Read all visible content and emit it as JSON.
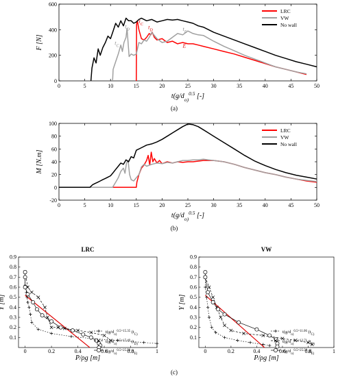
{
  "figure": {
    "panel_a_caption": "(a)",
    "panel_b_caption": "(b)",
    "panel_c_caption": "(c)"
  },
  "chart_data": [
    {
      "type": "line",
      "id": "a",
      "ylabel": "F [N]",
      "xlabel": "t(g/d_o)^0.5 [-]",
      "xlim": [
        0,
        50
      ],
      "ylim": [
        0,
        600
      ],
      "xticks": [
        0,
        5,
        10,
        15,
        20,
        25,
        30,
        35,
        40,
        45,
        50
      ],
      "yticks": [
        0,
        200,
        400,
        600
      ],
      "legend_position": "top-right",
      "annotations": [
        {
          "text": "t_C",
          "x": 10.8,
          "y": 280,
          "color": "#888888"
        },
        {
          "text": "t_D",
          "x": 12.8,
          "y": 410,
          "color": "#888888"
        },
        {
          "text": "t_C",
          "x": 15.5,
          "y": 450,
          "color": "#e00000"
        },
        {
          "text": "t_D",
          "x": 17.3,
          "y": 405,
          "color": "#e00000"
        },
        {
          "text": "t_E",
          "x": 24.0,
          "y": 390,
          "color": "#888888"
        },
        {
          "text": "E",
          "x": 24.0,
          "y": 260,
          "color": "#e00000"
        }
      ],
      "series": [
        {
          "name": "LRC",
          "color": "#ff0000",
          "x": [
            15,
            15.05,
            15.2,
            15.5,
            16,
            16.5,
            17,
            17.5,
            17.8,
            18.1,
            18.5,
            19,
            20,
            21,
            22,
            23,
            24,
            25,
            26,
            27,
            28,
            30,
            32,
            34,
            36,
            38,
            40,
            42,
            44,
            46,
            48
          ],
          "y": [
            0,
            440,
            470,
            400,
            330,
            320,
            340,
            370,
            360,
            380,
            340,
            320,
            330,
            300,
            310,
            290,
            300,
            290,
            290,
            280,
            270,
            250,
            230,
            210,
            185,
            160,
            135,
            110,
            90,
            70,
            50
          ]
        },
        {
          "name": "VW",
          "color": "#a0a0a0",
          "x": [
            10.4,
            10.5,
            11,
            11.5,
            12,
            12.3,
            12.6,
            13,
            13.2,
            13.4,
            13.6,
            14,
            14.5,
            15,
            15.5,
            16,
            16.5,
            17,
            17.5,
            18,
            19,
            20,
            21,
            22,
            23,
            24,
            25,
            26,
            27,
            28,
            30,
            32,
            34,
            36,
            38,
            40,
            42,
            44,
            46,
            48
          ],
          "y": [
            0,
            90,
            150,
            210,
            280,
            230,
            300,
            340,
            410,
            300,
            190,
            210,
            200,
            210,
            300,
            290,
            320,
            310,
            340,
            380,
            330,
            300,
            310,
            340,
            370,
            360,
            390,
            370,
            360,
            355,
            310,
            270,
            235,
            200,
            170,
            140,
            110,
            90,
            70,
            55
          ]
        },
        {
          "name": "No wall",
          "color": "#000000",
          "x": [
            6.2,
            6.4,
            6.8,
            7.2,
            7.6,
            8,
            8.5,
            9,
            9.5,
            10,
            10.5,
            11,
            11.5,
            12,
            12.5,
            13,
            13.5,
            14,
            14.5,
            15,
            15.5,
            16,
            16.5,
            17,
            18,
            19,
            20,
            21,
            22,
            23,
            24,
            25,
            26,
            27,
            28,
            29,
            30,
            32,
            34,
            36,
            38,
            40,
            42,
            44,
            46,
            48,
            50
          ],
          "y": [
            0,
            100,
            180,
            140,
            250,
            200,
            260,
            300,
            350,
            330,
            390,
            450,
            420,
            470,
            430,
            490,
            470,
            470,
            450,
            460,
            480,
            490,
            480,
            470,
            480,
            460,
            470,
            480,
            475,
            480,
            470,
            460,
            450,
            430,
            420,
            400,
            380,
            350,
            320,
            290,
            260,
            230,
            200,
            175,
            150,
            130,
            110
          ]
        }
      ]
    },
    {
      "type": "line",
      "id": "b",
      "ylabel": "M [N.m]",
      "xlabel": "t(g/d_o)^0.5 [-]",
      "xlim": [
        0,
        50
      ],
      "ylim": [
        -20,
        100
      ],
      "xticks": [
        0,
        5,
        10,
        15,
        20,
        25,
        30,
        35,
        40,
        45,
        50
      ],
      "yticks": [
        -20,
        0,
        20,
        40,
        60,
        80,
        100
      ],
      "legend_position": "top-right",
      "series": [
        {
          "name": "LRC",
          "color": "#ff0000",
          "x": [
            0,
            15,
            15.1,
            15.5,
            16,
            16.5,
            17,
            17.3,
            17.6,
            17.9,
            18.2,
            18.5,
            19,
            19.5,
            20,
            21,
            22,
            23,
            24,
            25,
            26,
            28,
            30,
            32,
            34,
            36,
            38,
            40,
            42,
            44,
            46,
            48,
            50
          ],
          "y": [
            0,
            0,
            8,
            20,
            30,
            35,
            42,
            50,
            35,
            55,
            40,
            45,
            38,
            42,
            37,
            40,
            38,
            40,
            39,
            40,
            40,
            42,
            42,
            40,
            36,
            31,
            27,
            23,
            20,
            16,
            13,
            10,
            8
          ]
        },
        {
          "name": "VW",
          "color": "#a0a0a0",
          "x": [
            0,
            10.4,
            11,
            11.5,
            12,
            12.5,
            12.8,
            13.1,
            13.4,
            13.7,
            14,
            14.5,
            15,
            15.5,
            16,
            16.5,
            17,
            18,
            19,
            20,
            21,
            22,
            23,
            24,
            25,
            26,
            27,
            28,
            29,
            30,
            32,
            34,
            36,
            38,
            40,
            42,
            44,
            46,
            48,
            50
          ],
          "y": [
            0,
            0,
            8,
            15,
            25,
            30,
            22,
            38,
            42,
            20,
            12,
            10,
            15,
            20,
            32,
            36,
            33,
            36,
            38,
            37,
            39,
            38,
            40,
            42,
            42,
            43,
            43,
            44,
            43,
            42,
            40,
            36,
            31,
            27,
            23,
            20,
            16,
            13,
            11,
            9
          ]
        },
        {
          "name": "No wall",
          "color": "#000000",
          "x": [
            0,
            6,
            6.5,
            7,
            7.5,
            8,
            8.5,
            9,
            9.5,
            10,
            10.5,
            11,
            11.5,
            12,
            12.5,
            13,
            13.5,
            14,
            14.5,
            15,
            16,
            17,
            18,
            19,
            20,
            21,
            22,
            23,
            24,
            25,
            26,
            27,
            28,
            29,
            30,
            32,
            34,
            36,
            38,
            40,
            42,
            44,
            46,
            48,
            50
          ],
          "y": [
            0,
            0,
            4,
            6,
            8,
            10,
            12,
            14,
            16,
            18,
            23,
            28,
            33,
            38,
            36,
            43,
            40,
            48,
            46,
            58,
            62,
            66,
            68,
            71,
            75,
            80,
            85,
            90,
            95,
            99,
            98,
            95,
            90,
            85,
            80,
            70,
            60,
            50,
            41,
            34,
            28,
            23,
            19,
            16,
            13
          ]
        }
      ]
    },
    {
      "type": "line",
      "id": "c-left",
      "title": "LRC",
      "ylabel": "Y [m]",
      "xlabel": "P/ρg [m]",
      "xlim": [
        -0.05,
        1
      ],
      "ylim": [
        0,
        0.9
      ],
      "xticks": [
        0,
        0.2,
        0.4,
        0.6,
        0.8,
        1
      ],
      "xtick_labels": [
        "0",
        "0.2",
        "0.4",
        "0.6",
        "0.8",
        "1"
      ],
      "yticks": [
        0.1,
        0.2,
        0.3,
        0.4,
        0.5,
        0.6,
        0.7,
        0.8,
        0.9
      ],
      "ytick_labels": [
        "0.1",
        "0.2",
        "0.3",
        "0.4",
        "0.5",
        "0.6",
        "0.7",
        "0.8",
        "0.9"
      ],
      "legend_position": "right",
      "reference_line": {
        "x": [
          0,
          0.49
        ],
        "y": [
          0.52,
          0.0
        ],
        "color": "#e00000"
      },
      "series": [
        {
          "name": "t(g/d_o)^0.5=15.35 (t_C)",
          "marker": "plus",
          "dash": "1.5,2",
          "x": [
            0,
            0,
            0.01,
            0.015,
            0.02,
            0.03,
            0.04,
            0.05,
            0.1,
            0.2,
            0.35,
            0.5,
            0.7,
            0.9,
            1.0
          ],
          "y": [
            0.7,
            0.62,
            0.55,
            0.5,
            0.45,
            0.4,
            0.33,
            0.25,
            0.18,
            0.14,
            0.11,
            0.09,
            0.07,
            0.05,
            0.04
          ]
        },
        {
          "name": "t(g/d_o)^0.5=17.49 (t_D)",
          "marker": "x",
          "dash": "3,2",
          "x": [
            0,
            0.02,
            0.05,
            0.1,
            0.15,
            0.17,
            0.2,
            0.25,
            0.3,
            0.4,
            0.5,
            0.6,
            0.65
          ],
          "y": [
            0.75,
            0.6,
            0.55,
            0.5,
            0.4,
            0.3,
            0.2,
            0.2,
            0.19,
            0.17,
            0.15,
            0.12,
            0.07
          ]
        },
        {
          "name": "t(g/d_o)^0.5=25.58 (t_E)",
          "marker": "circle",
          "dash": "",
          "x": [
            0,
            0,
            0.0,
            0.02,
            0.06,
            0.09,
            0.13,
            0.2,
            0.27,
            0.36,
            0.44,
            0.5,
            0.54,
            0.56,
            0.57,
            0.56
          ],
          "y": [
            0.75,
            0.7,
            0.6,
            0.53,
            0.45,
            0.38,
            0.32,
            0.26,
            0.2,
            0.17,
            0.13,
            0.1,
            0.07,
            0.04,
            0.02,
            0.0
          ]
        }
      ]
    },
    {
      "type": "line",
      "id": "c-right",
      "title": "VW",
      "ylabel": "Y [m]",
      "xlabel": "P/ρg [m]",
      "xlim": [
        -0.05,
        1
      ],
      "ylim": [
        0,
        0.9
      ],
      "xticks": [
        0,
        0.2,
        0.4,
        0.6,
        0.8,
        1
      ],
      "xtick_labels": [
        "0",
        "0.2",
        "0.4",
        "0.6",
        "0.8",
        "1"
      ],
      "yticks": [
        0.1,
        0.2,
        0.3,
        0.4,
        0.5,
        0.6,
        0.7,
        0.8,
        0.9
      ],
      "ytick_labels": [
        "0.1",
        "0.2",
        "0.3",
        "0.4",
        "0.5",
        "0.6",
        "0.7",
        "0.8",
        "0.9"
      ],
      "legend_position": "right",
      "reference_line": {
        "x": [
          0,
          0.46
        ],
        "y": [
          0.52,
          0.0
        ],
        "color": "#e00000"
      },
      "series": [
        {
          "name": "t(g/d_o)^0.5=11.06 (t_C)",
          "marker": "plus",
          "dash": "1.5,2",
          "x": [
            0,
            0,
            0.01,
            0.02,
            0.03,
            0.05,
            0.08,
            0.15,
            0.25,
            0.35,
            0.45,
            0.5
          ],
          "y": [
            0.7,
            0.6,
            0.5,
            0.4,
            0.3,
            0.2,
            0.15,
            0.1,
            0.07,
            0.05,
            0.03,
            0.02
          ]
        },
        {
          "name": "t(g/d_o)^0.5=12.71 (t_D)",
          "marker": "x",
          "dash": "3,2",
          "x": [
            0,
            0.03,
            0.06,
            0.09,
            0.12,
            0.15,
            0.2,
            0.3,
            0.45,
            0.6,
            0.7,
            0.8,
            0.83
          ],
          "y": [
            0.7,
            0.6,
            0.5,
            0.4,
            0.3,
            0.22,
            0.17,
            0.14,
            0.12,
            0.09,
            0.07,
            0.05,
            0.03
          ]
        },
        {
          "name": "t(g/d_o)^0.5=25.58 (t_E)",
          "marker": "circle",
          "dash": "",
          "x": [
            0,
            0,
            0.02,
            0.06,
            0.1,
            0.15,
            0.26,
            0.4,
            0.5,
            0.55,
            0.56,
            0.56
          ],
          "y": [
            0.75,
            0.7,
            0.55,
            0.45,
            0.38,
            0.33,
            0.25,
            0.18,
            0.12,
            0.08,
            0.04,
            0.01
          ]
        }
      ]
    }
  ]
}
